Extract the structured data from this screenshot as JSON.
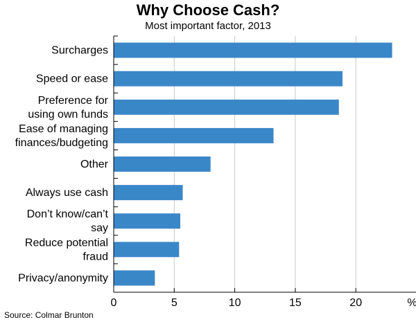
{
  "chart_data": {
    "type": "bar",
    "orientation": "horizontal",
    "title": "Why Choose Cash?",
    "subtitle": "Most important factor, 2013",
    "categories": [
      [
        "Surcharges"
      ],
      [
        "Speed or ease"
      ],
      [
        "Preference for",
        "using own funds"
      ],
      [
        "Ease of managing",
        "finances/budgeting"
      ],
      [
        "Other"
      ],
      [
        "Always use cash"
      ],
      [
        "Don’t know/can’t",
        "say"
      ],
      [
        "Reduce potential",
        "fraud"
      ],
      [
        "Privacy/anonymity"
      ]
    ],
    "values": [
      23.0,
      18.9,
      18.6,
      13.2,
      8.0,
      5.7,
      5.5,
      5.4,
      3.4
    ],
    "xlim": [
      0,
      25
    ],
    "xticks": [
      "0",
      "5",
      "10",
      "15",
      "20"
    ],
    "xunit": "%",
    "grid": true,
    "bar_color": "#3a87c8",
    "source": "Source: Colmar Brunton"
  }
}
